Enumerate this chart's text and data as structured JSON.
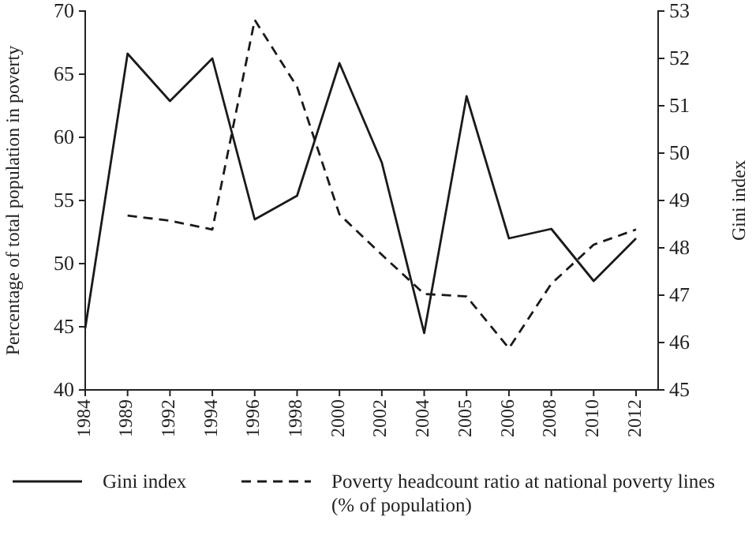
{
  "chart_data": {
    "type": "line",
    "ylabel": "Percentage of total population in poverty",
    "y2label": "Gini index",
    "categories": [
      "1984",
      "1989",
      "1992",
      "1994",
      "1996",
      "1998",
      "2000",
      "2002",
      "2004",
      "2005",
      "2006",
      "2008",
      "2010",
      "2012"
    ],
    "series": [
      {
        "name": "Gini index",
        "color": "#1a1a1a",
        "axis": "y2",
        "line_style": "solid",
        "values": [
          46.3,
          52.1,
          51.1,
          52.0,
          48.6,
          49.1,
          51.9,
          49.8,
          46.2,
          51.2,
          48.2,
          48.4,
          47.3,
          48.2
        ]
      },
      {
        "name": "Poverty headcount ratio at national poverty lines (% of population)",
        "color": "#1a1a1a",
        "axis": "y",
        "line_style": "dashed",
        "values": [
          null,
          53.8,
          53.4,
          52.7,
          69.3,
          64.0,
          53.9,
          50.7,
          47.6,
          47.4,
          43.3,
          48.4,
          51.5,
          52.7
        ]
      }
    ],
    "ylim": [
      40,
      70
    ],
    "yticks": [
      40,
      45,
      50,
      55,
      60,
      65,
      70
    ],
    "y2lim": [
      45,
      53
    ],
    "y2ticks": [
      45,
      46,
      47,
      48,
      49,
      50,
      51,
      52,
      53
    ],
    "grid": false,
    "legend": "bottom",
    "marker": "none"
  }
}
